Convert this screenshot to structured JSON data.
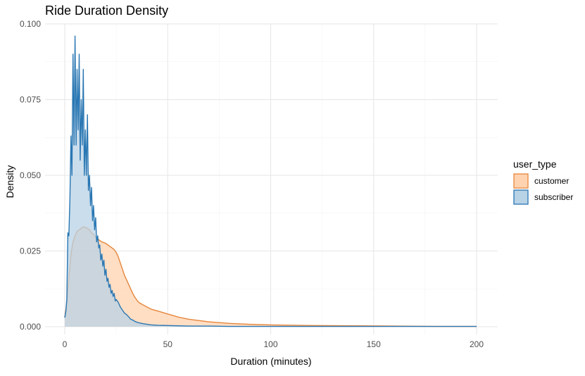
{
  "chart_data": {
    "type": "area",
    "title": "Ride Duration Density",
    "xlabel": "Duration (minutes)",
    "ylabel": "Density",
    "xlim": [
      0,
      200
    ],
    "ylim": [
      0,
      0.1
    ],
    "x_ticks": [
      0,
      50,
      100,
      150,
      200
    ],
    "x_tick_labels": [
      "0",
      "50",
      "100",
      "150",
      "200"
    ],
    "y_ticks": [
      0,
      0.025,
      0.05,
      0.075,
      0.1
    ],
    "y_tick_labels": [
      "0.000",
      "0.025",
      "0.050",
      "0.075",
      "0.100"
    ],
    "grid": true,
    "legend": {
      "title": "user_type",
      "placement": "right",
      "entries": [
        "customer",
        "subscriber"
      ]
    },
    "series": [
      {
        "name": "customer",
        "color": "#e6863b",
        "fill": "#ffd3b0",
        "x": [
          0,
          1,
          2,
          3,
          4,
          5,
          6,
          7,
          8,
          9,
          10,
          11,
          12,
          13,
          14,
          15,
          16,
          17,
          18,
          19,
          20,
          21,
          22,
          23,
          24,
          25,
          26,
          27,
          28,
          29,
          30,
          31,
          32,
          33,
          34,
          35,
          36,
          38,
          40,
          42,
          45,
          50,
          55,
          60,
          70,
          80,
          90,
          100,
          120,
          140,
          160,
          180,
          200
        ],
        "values": [
          0.003,
          0.008,
          0.016,
          0.024,
          0.028,
          0.03,
          0.0315,
          0.032,
          0.0325,
          0.033,
          0.0328,
          0.0325,
          0.032,
          0.031,
          0.0305,
          0.0295,
          0.029,
          0.0285,
          0.028,
          0.0278,
          0.0275,
          0.027,
          0.0265,
          0.026,
          0.0255,
          0.0245,
          0.023,
          0.021,
          0.019,
          0.017,
          0.0155,
          0.014,
          0.0125,
          0.011,
          0.0098,
          0.0088,
          0.008,
          0.0072,
          0.0065,
          0.0058,
          0.0052,
          0.0042,
          0.0032,
          0.0025,
          0.0016,
          0.0011,
          0.0008,
          0.0006,
          0.0004,
          0.0003,
          0.0002,
          0.0001,
          0.0001
        ]
      },
      {
        "name": "subscriber",
        "color": "#2a77b3",
        "fill": "#b8d2e6",
        "x": [
          0,
          0.5,
          1,
          1.5,
          2,
          2.5,
          3,
          3.5,
          4,
          4.5,
          5,
          5.5,
          6,
          6.5,
          7,
          7.5,
          8,
          8.5,
          9,
          9.5,
          10,
          10.5,
          11,
          11.5,
          12,
          12.5,
          13,
          13.5,
          14,
          14.5,
          15,
          15.5,
          16,
          16.5,
          17,
          17.5,
          18,
          18.5,
          19,
          19.5,
          20,
          20.5,
          21,
          21.5,
          22,
          22.5,
          23,
          23.5,
          24,
          24.5,
          25,
          26,
          27,
          28,
          29,
          30,
          31,
          32,
          33,
          34,
          35,
          36,
          38,
          40,
          42,
          45,
          50,
          55,
          60,
          70,
          80,
          100,
          120,
          150,
          200
        ],
        "values": [
          0.003,
          0.005,
          0.009,
          0.031,
          0.03,
          0.042,
          0.063,
          0.05,
          0.09,
          0.06,
          0.096,
          0.06,
          0.085,
          0.065,
          0.09,
          0.055,
          0.075,
          0.06,
          0.085,
          0.05,
          0.065,
          0.05,
          0.07,
          0.045,
          0.05,
          0.04,
          0.046,
          0.035,
          0.04,
          0.032,
          0.036,
          0.028,
          0.03,
          0.026,
          0.027,
          0.022,
          0.024,
          0.02,
          0.022,
          0.017,
          0.019,
          0.015,
          0.016,
          0.013,
          0.014,
          0.011,
          0.012,
          0.01,
          0.011,
          0.0085,
          0.009,
          0.008,
          0.0065,
          0.0055,
          0.0045,
          0.004,
          0.0033,
          0.0025,
          0.0022,
          0.0018,
          0.0015,
          0.0013,
          0.001,
          0.0008,
          0.0006,
          0.0005,
          0.0004,
          0.0003,
          0.0002,
          0.0002,
          0.0001,
          0.0001,
          0.0001,
          0.0001,
          0.0001
        ]
      }
    ]
  }
}
